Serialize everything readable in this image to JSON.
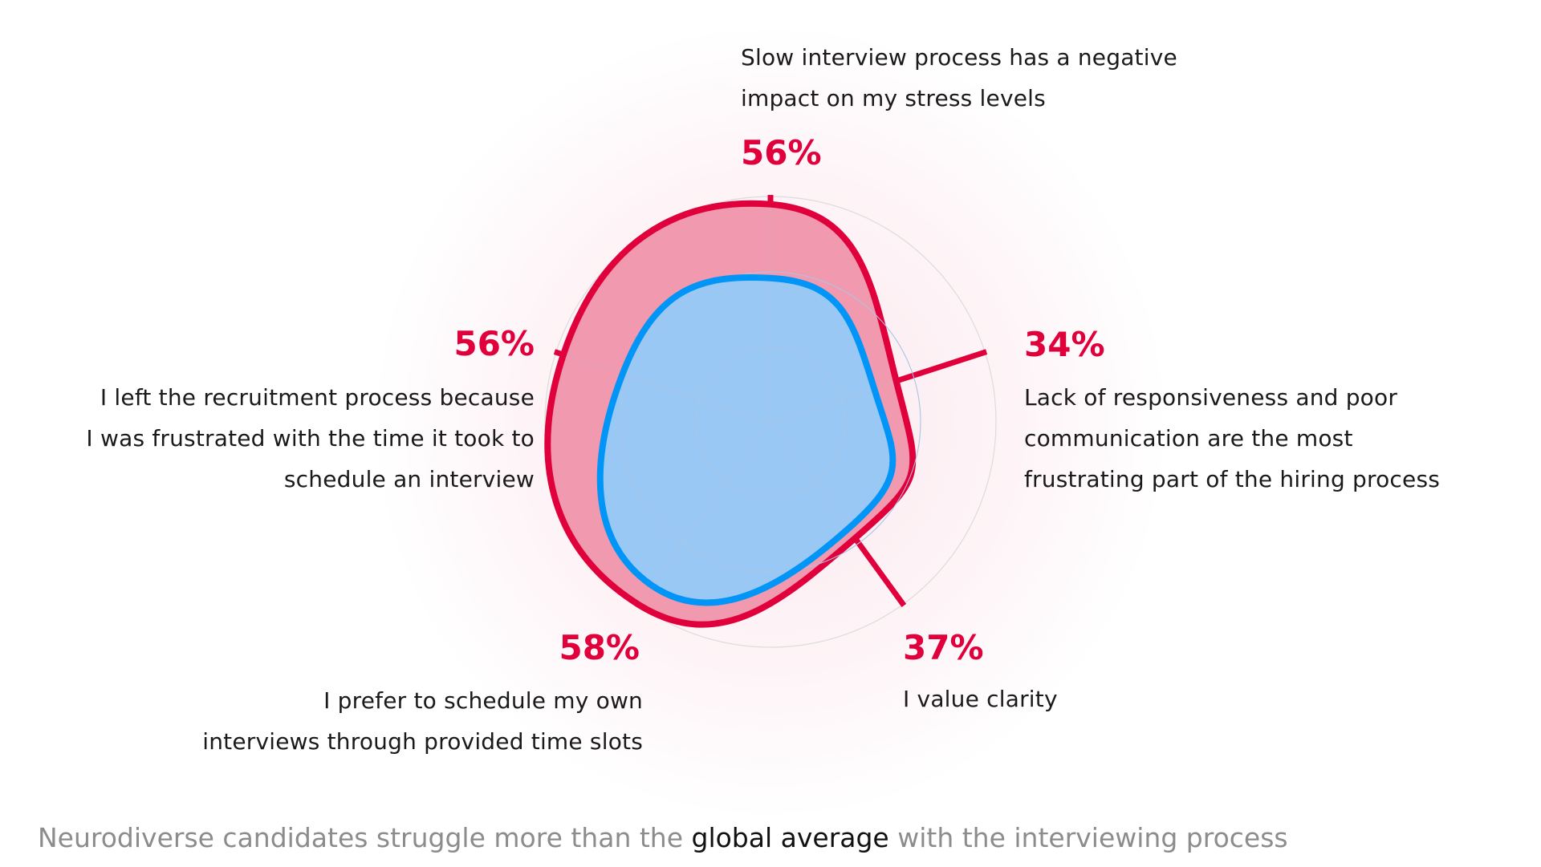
{
  "chart_data": {
    "type": "radar",
    "axes": [
      {
        "label_lines": [
          "Slow interview process has a negative",
          "impact on my stress levels"
        ],
        "value_label": "56%"
      },
      {
        "label_lines": [
          "Lack of responsiveness and poor",
          "communication are the most",
          "frustrating part of the hiring process"
        ],
        "value_label": "34%"
      },
      {
        "label_lines": [
          "I value clarity"
        ],
        "value_label": "37%"
      },
      {
        "label_lines": [
          "I prefer to schedule my own",
          "interviews through provided time slots"
        ],
        "value_label": "58%"
      },
      {
        "label_lines": [
          "I left the recruitment process because",
          "I was frustrated with the time it took to",
          "schedule an interview"
        ],
        "value_label": "56%"
      }
    ],
    "series": [
      {
        "name": "Neurodiverse candidates",
        "values": [
          56,
          34,
          37,
          58,
          56
        ],
        "stroke": "#e0003c",
        "fill": "#f093aa"
      },
      {
        "name": "global average",
        "values": [
          37,
          28,
          34,
          52,
          40
        ],
        "stroke": "#0095f6",
        "fill": "#99c8f5"
      }
    ],
    "rings": [
      20,
      40,
      58
    ],
    "rmax": 58
  },
  "caption": {
    "before": "Neurodiverse candidates struggle more than the ",
    "highlight": "global average",
    "after": " with the interviewing process"
  }
}
